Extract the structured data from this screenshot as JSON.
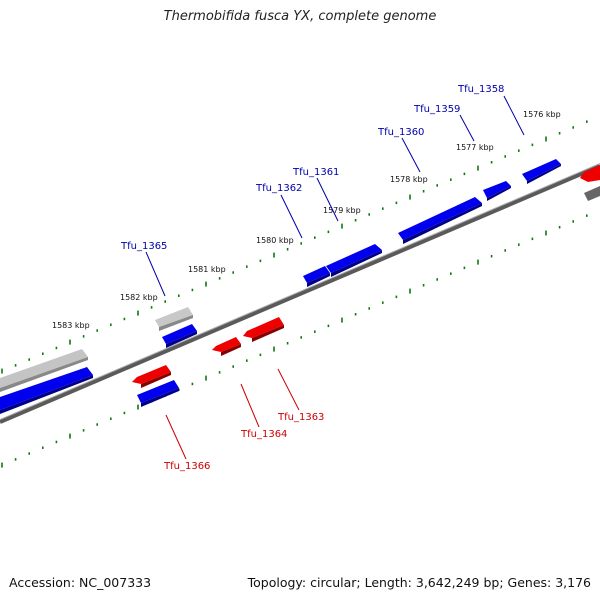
{
  "title": "Thermobifida fusca YX, complete genome",
  "footer": {
    "accession": "Accession: NC_007333",
    "summary": "Topology: circular; Length: 3,642,249 bp; Genes: 3,176"
  },
  "colors": {
    "forward_gene": "#0000ee",
    "reverse_gene": "#ee0000",
    "other_feature": "#b4b4b4",
    "dark_feature": "#555555",
    "backbone": "#666666",
    "ticks": "#117711",
    "forward_label": "#0000aa",
    "reverse_label": "#cc0000"
  },
  "kbp_labels": [
    "1576 kbp",
    "1577 kbp",
    "1578 kbp",
    "1579 kbp",
    "1580 kbp",
    "1581 kbp",
    "1582 kbp",
    "1583 kbp"
  ],
  "gene_labels": {
    "forward": [
      "Tfu_1358",
      "Tfu_1359",
      "Tfu_1360",
      "Tfu_1361",
      "Tfu_1362",
      "Tfu_1365"
    ],
    "reverse": [
      "Tfu_1363",
      "Tfu_1364",
      "Tfu_1366"
    ]
  }
}
